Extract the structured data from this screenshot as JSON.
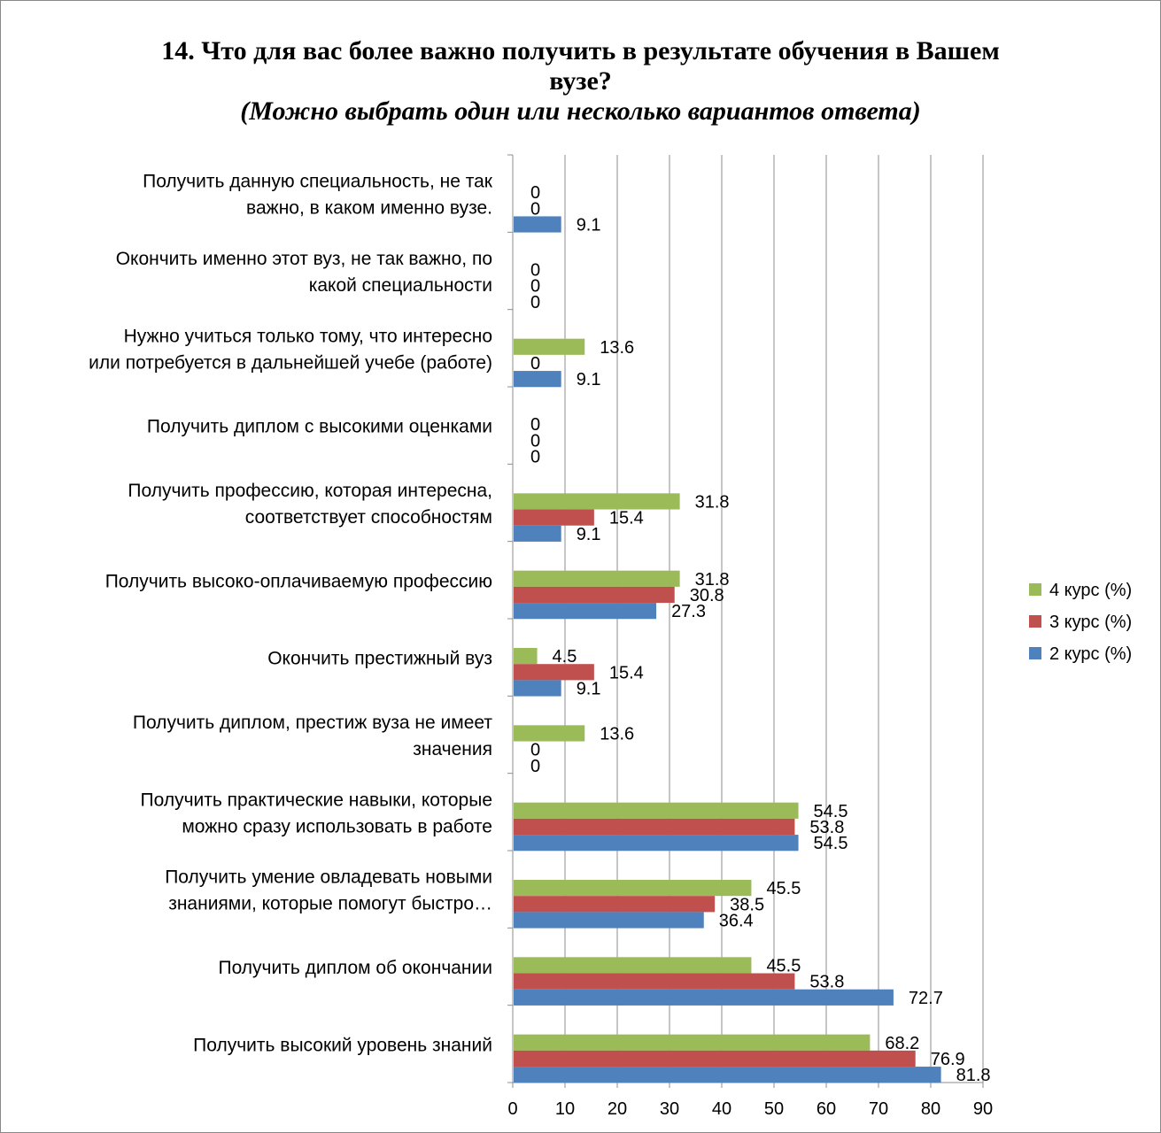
{
  "chart_data": {
    "type": "bar",
    "orientation": "horizontal",
    "title_lines": [
      "14. Что для вас более важно получить в результате обучения в Вашем",
      "вузе?"
    ],
    "subtitle": "(Можно выбрать один или несколько вариантов ответа)",
    "categories": [
      "Получить высокий уровень знаний",
      "Получить диплом об окончании",
      "Получить умение овладевать новыми знаниями, которые помогут быстро…",
      "Получить практические навыки, которые можно сразу использовать в работе",
      "Получить диплом, престиж вуза не имеет значения",
      "Окончить престижный вуз",
      "Получить высоко-оплачиваемую профессию",
      "Получить профессию, которая интересна, соответствует способностям",
      "Получить диплом с высокими оценками",
      "Нужно учиться только тому, что интересно или потребуется в дальнейшей учебе (работе)",
      "Окончить именно этот вуз, не так важно, по какой специальности",
      "Получить данную специальность, не так важно, в каком именно вузе."
    ],
    "category_label_lines": [
      [
        "Получить высокий уровень знаний"
      ],
      [
        "Получить диплом об окончании"
      ],
      [
        "Получить умение овладевать новыми",
        "знаниями, которые помогут быстро…"
      ],
      [
        "Получить практические навыки, которые",
        "можно сразу использовать в работе"
      ],
      [
        "Получить диплом, престиж вуза не имеет",
        "значения"
      ],
      [
        "Окончить престижный вуз"
      ],
      [
        "Получить высоко-оплачиваемую профессию"
      ],
      [
        "Получить профессию, которая интересна,",
        "соответствует способностям"
      ],
      [
        "Получить диплом с высокими оценками"
      ],
      [
        "Нужно учиться только тому, что интересно",
        "или потребуется в дальнейшей учебе (работе)"
      ],
      [
        "Окончить именно этот вуз, не так важно, по",
        "какой специальности"
      ],
      [
        "Получить данную специальность, не так",
        "важно, в каком именно вузе."
      ]
    ],
    "series": [
      {
        "name": "2 курс (%)",
        "color": "#4F81BD",
        "values": [
          81.8,
          72.7,
          36.4,
          54.5,
          0,
          9.1,
          27.3,
          9.1,
          0,
          9.1,
          0,
          9.1
        ]
      },
      {
        "name": "3 курс (%)",
        "color": "#C0504D",
        "values": [
          76.9,
          53.8,
          38.5,
          53.8,
          0,
          15.4,
          30.8,
          15.4,
          0,
          0,
          0,
          0
        ]
      },
      {
        "name": "4 курс (%)",
        "color": "#9BBB59",
        "values": [
          68.2,
          45.5,
          45.5,
          54.5,
          13.6,
          4.5,
          31.8,
          31.8,
          0,
          13.6,
          0,
          0
        ]
      }
    ],
    "xlim": [
      0,
      90
    ],
    "xticks": [
      0,
      10,
      20,
      30,
      40,
      50,
      60,
      70,
      80,
      90
    ],
    "grid": "vertical",
    "legend_position": "right"
  }
}
